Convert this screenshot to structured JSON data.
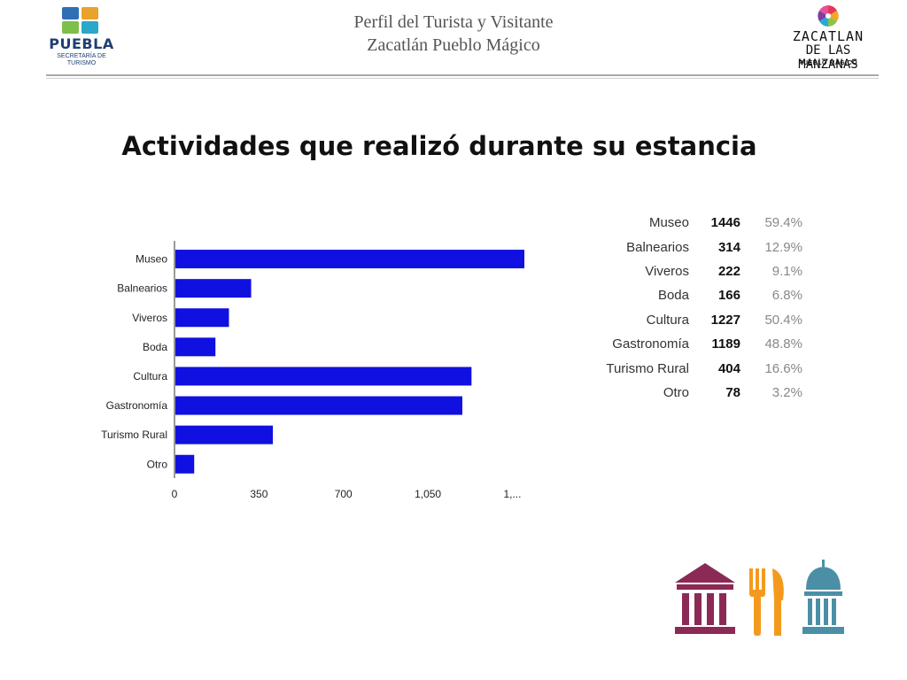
{
  "header": {
    "title_line1": "Perfil del Turista y Visitante",
    "title_line2": "Zacatlán Pueblo Mágico",
    "left_logo": {
      "brand": "PUEBLA",
      "sub_line1": "SECRETARÍA DE",
      "sub_line2": "TURISMO"
    },
    "right_logo": {
      "line1": "ZACATLAN",
      "line2": "DE LAS MANZANAS",
      "line3": "PUEBLO MÁGICO"
    }
  },
  "main_title": "Actividades que realizó durante su estancia",
  "chart_data": {
    "type": "bar",
    "orientation": "horizontal",
    "categories": [
      "Museo",
      "Balnearios",
      "Viveros",
      "Boda",
      "Cultura",
      "Gastronomía",
      "Turismo Rural",
      "Otro"
    ],
    "values": [
      1446,
      314,
      222,
      166,
      1227,
      1189,
      404,
      78
    ],
    "xticks": [
      "0",
      "350",
      "700",
      "1,050",
      "1,..."
    ],
    "xtick_values": [
      0,
      350,
      700,
      1050,
      1400
    ],
    "xlim": [
      0,
      1446
    ],
    "bar_color": "#1010e0",
    "title": "",
    "xlabel": "",
    "ylabel": ""
  },
  "table": {
    "rows": [
      {
        "name": "Museo",
        "count": "1446",
        "pct": "59.4%"
      },
      {
        "name": "Balnearios",
        "count": "314",
        "pct": "12.9%"
      },
      {
        "name": "Viveros",
        "count": "222",
        "pct": "9.1%"
      },
      {
        "name": "Boda",
        "count": "166",
        "pct": "6.8%"
      },
      {
        "name": "Cultura",
        "count": "1227",
        "pct": "50.4%"
      },
      {
        "name": "Gastronomía",
        "count": "1189",
        "pct": "48.8%"
      },
      {
        "name": "Turismo Rural",
        "count": "404",
        "pct": "16.6%"
      },
      {
        "name": "Otro",
        "count": "78",
        "pct": "3.2%"
      }
    ]
  },
  "icons": [
    "museum-icon",
    "fork-knife-icon",
    "capitol-dome-icon"
  ],
  "colors": {
    "museum": "#8b2a55",
    "cutlery": "#f39a1e",
    "dome": "#4a8fa6"
  }
}
